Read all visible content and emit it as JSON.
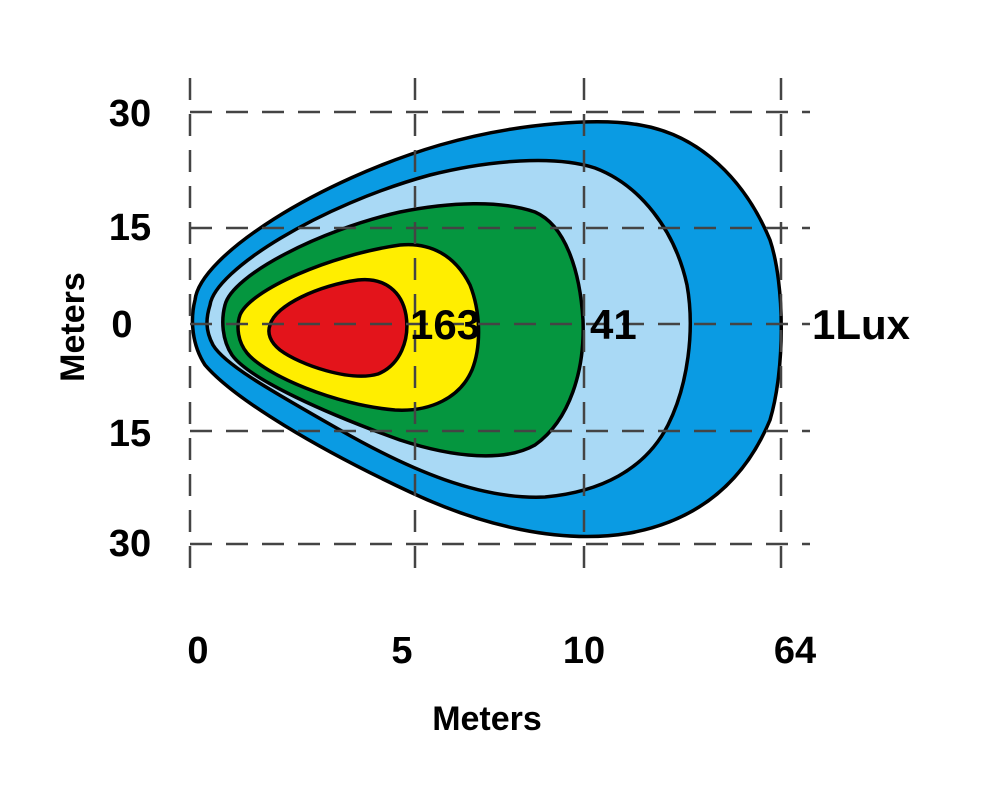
{
  "diagram": {
    "x_axis": {
      "label": "Meters",
      "ticks": [
        "0",
        "5",
        "10",
        "64"
      ]
    },
    "y_axis": {
      "label": "Meters",
      "ticks": [
        "30",
        "15",
        "0",
        "15",
        "30"
      ]
    },
    "zones": [
      {
        "name": "outer-zone",
        "color": "#0a9be3"
      },
      {
        "name": "light-blue-zone",
        "color": "#a9d9f5"
      },
      {
        "name": "green-zone",
        "color": "#05963f"
      },
      {
        "name": "yellow-zone",
        "color": "#ffee00"
      },
      {
        "name": "red-zone",
        "color": "#e3141b"
      }
    ],
    "lux_labels": {
      "zone_163": "163",
      "zone_41": "41",
      "zone_1": "1Lux"
    }
  }
}
